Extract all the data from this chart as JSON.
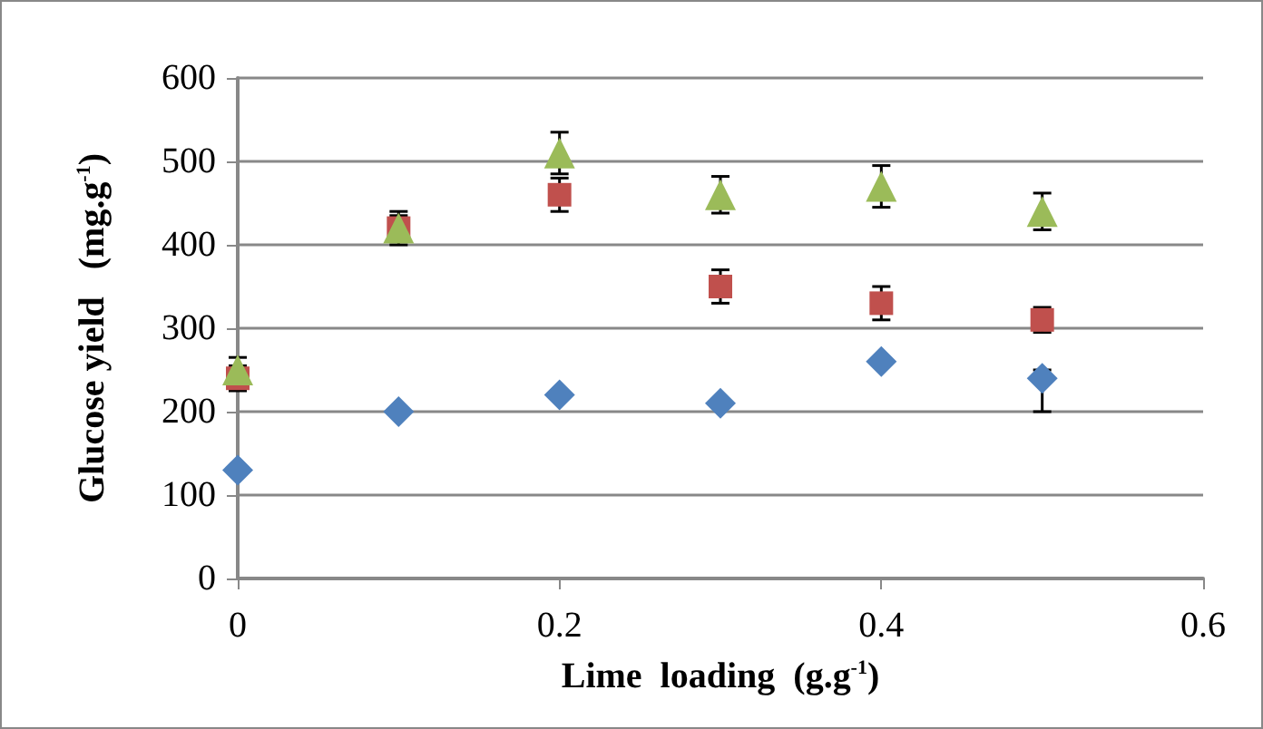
{
  "chart_data": {
    "type": "scatter",
    "xlabel": "Lime  loading  (g.g$^{-1}$)",
    "ylabel": "Glucose yield   (mg.g$^{-1}$)",
    "x": [
      0,
      0.1,
      0.2,
      0.3,
      0.4,
      0.5
    ],
    "xlim": [
      0,
      0.6
    ],
    "xticks": [
      0,
      0.2,
      0.4,
      0.6
    ],
    "ylim": [
      0,
      600
    ],
    "yticks": [
      0,
      100,
      200,
      300,
      400,
      500,
      600
    ],
    "grid": "y",
    "series": [
      {
        "color": "#4f81bd",
        "marker": "diamond",
        "values": [
          130,
          200,
          220,
          210,
          260,
          240
        ],
        "errors": [
          null,
          null,
          null,
          null,
          null,
          [
            200,
            250
          ]
        ]
      },
      {
        "color": "#c0504d",
        "marker": "square",
        "values": [
          240,
          420,
          460,
          350,
          330,
          310
        ],
        "errors": [
          15,
          15,
          20,
          20,
          20,
          15
        ]
      },
      {
        "color": "#9bbb59",
        "marker": "triangle",
        "values": [
          250,
          420,
          510,
          460,
          470,
          440
        ],
        "errors": [
          15,
          20,
          25,
          22,
          25,
          22
        ]
      }
    ]
  }
}
